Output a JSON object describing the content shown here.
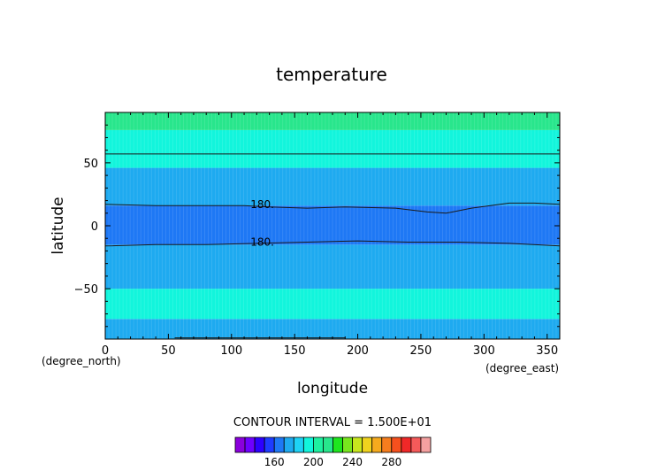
{
  "chart_data": {
    "type": "heatmap",
    "title": "temperature",
    "xlabel": "longitude",
    "ylabel": "latitude",
    "x_unit_label": "(degree_east)",
    "y_unit_label": "(degree_north)",
    "xlim": [
      0,
      360
    ],
    "ylim": [
      -90,
      90
    ],
    "x_ticks": [
      0,
      50,
      100,
      150,
      200,
      250,
      300,
      350
    ],
    "y_ticks": [
      -50,
      0,
      50
    ],
    "contour_interval_text": "CONTOUR INTERVAL = 1.500E+01",
    "contour_labels": [
      {
        "text": "180.",
        "lon": 115,
        "lat": 17
      },
      {
        "text": "180.",
        "lon": 115,
        "lat": -13
      }
    ],
    "bands": [
      {
        "lat_from": -90,
        "lat_to": -74,
        "color": "#1eaaf0"
      },
      {
        "lat_from": -74,
        "lat_to": -50,
        "color": "#12f5dc"
      },
      {
        "lat_from": -50,
        "lat_to": -15,
        "color": "#1eaaf0"
      },
      {
        "lat_from": -15,
        "lat_to": 16,
        "color": "#1e78f5"
      },
      {
        "lat_from": 16,
        "lat_to": 46,
        "color": "#1eaaf0"
      },
      {
        "lat_from": 46,
        "lat_to": 76,
        "color": "#12f5dc"
      },
      {
        "lat_from": 76,
        "lat_to": 90,
        "color": "#28e68c"
      }
    ],
    "contours": [
      {
        "lat": 16,
        "points": [
          [
            0,
            17
          ],
          [
            40,
            16
          ],
          [
            80,
            16
          ],
          [
            110,
            16
          ],
          [
            130,
            15
          ],
          [
            160,
            14
          ],
          [
            190,
            15
          ],
          [
            230,
            14
          ],
          [
            255,
            11
          ],
          [
            270,
            10
          ],
          [
            290,
            14
          ],
          [
            320,
            18
          ],
          [
            340,
            18
          ],
          [
            360,
            17
          ]
        ]
      },
      {
        "lat": -15,
        "points": [
          [
            0,
            -16
          ],
          [
            40,
            -15
          ],
          [
            80,
            -15
          ],
          [
            120,
            -14
          ],
          [
            160,
            -13
          ],
          [
            200,
            -12
          ],
          [
            240,
            -13
          ],
          [
            280,
            -13
          ],
          [
            320,
            -14
          ],
          [
            360,
            -16
          ]
        ]
      },
      {
        "lat": 57,
        "points": [
          [
            0,
            57
          ],
          [
            90,
            57
          ],
          [
            180,
            57
          ],
          [
            270,
            57
          ],
          [
            360,
            57
          ]
        ]
      },
      {
        "lat": -89,
        "points": [
          [
            55,
            -89
          ],
          [
            120,
            -89
          ],
          [
            190,
            -89
          ]
        ]
      }
    ],
    "colorbar": {
      "colors": [
        "#8a00dc",
        "#6e00ff",
        "#2d00ff",
        "#1e3cff",
        "#1e78f5",
        "#1eaaf0",
        "#1ed2f5",
        "#12f5dc",
        "#1ef0a0",
        "#28e68c",
        "#1ee61e",
        "#78e61e",
        "#c8e61e",
        "#f0d21e",
        "#f5aa1e",
        "#f57d1e",
        "#f5501e",
        "#f02828",
        "#f55a5a",
        "#f5a0a0"
      ],
      "tick_labels": [
        "160",
        "200",
        "240",
        "280"
      ]
    }
  }
}
